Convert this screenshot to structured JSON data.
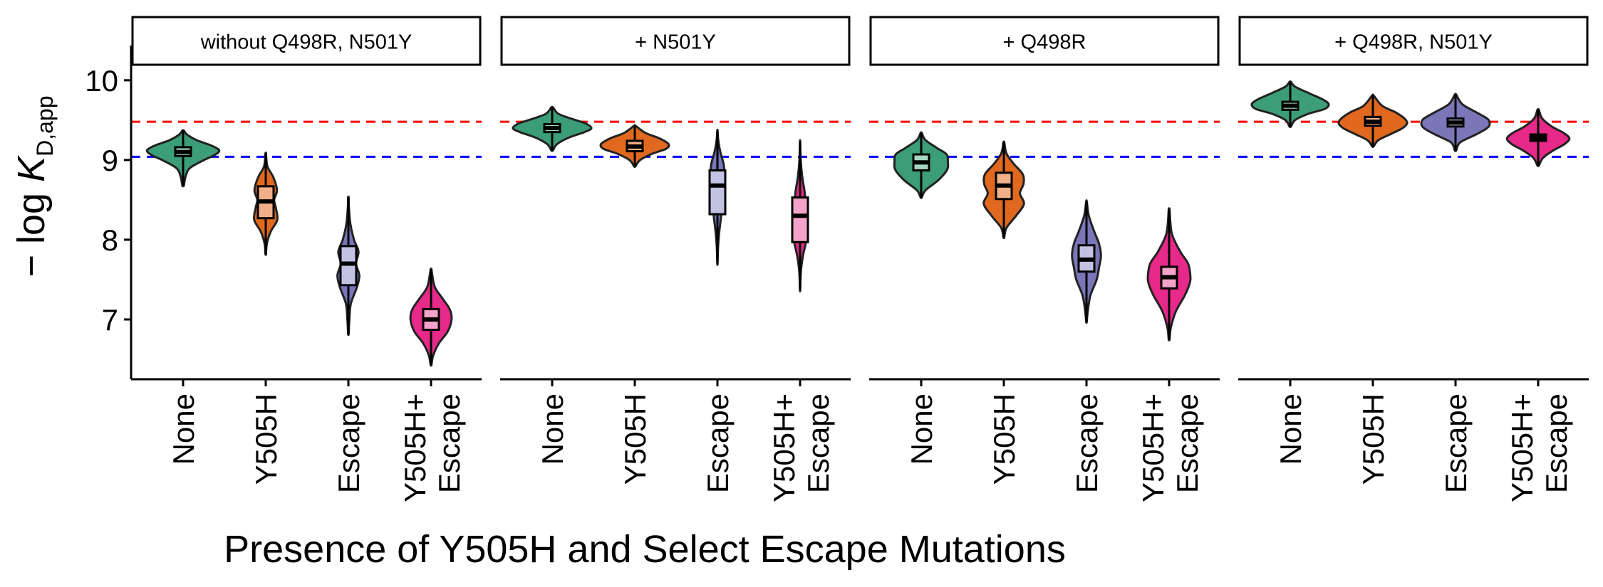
{
  "chart_data": {
    "type": "violin",
    "ylabel_main": "− log ",
    "ylabel_italic": "K",
    "ylabel_sub": "D,app",
    "xlabel": "Presence of Y505H and Select Escape Mutations",
    "ylim": [
      6.25,
      10.4
    ],
    "yticks": [
      7,
      8,
      9,
      10
    ],
    "reference_lines": [
      {
        "value": 9.48,
        "color": "#ff0000"
      },
      {
        "value": 9.04,
        "color": "#0000ff"
      }
    ],
    "categories": [
      {
        "line1": "None",
        "line2": ""
      },
      {
        "line1": "Y505H",
        "line2": ""
      },
      {
        "line1": "Escape",
        "line2": ""
      },
      {
        "line1": "Y505H+",
        "line2": "Escape"
      }
    ],
    "colors": {
      "fill": [
        "#3b9e78",
        "#e0691f",
        "#7a76b8",
        "#e7298a"
      ],
      "box": [
        "#a6d7c2",
        "#f2b08a",
        "#c4c2e2",
        "#f3a3c9"
      ]
    },
    "panels": [
      {
        "title": "without Q498R, N501Y",
        "violins": [
          {
            "center": 9.1,
            "min": 8.68,
            "max": 9.37,
            "q1": 9.05,
            "q3": 9.16,
            "median": 9.1,
            "w": 0.92,
            "shape": [
              [
                8.68,
                0.02
              ],
              [
                8.8,
                0.07
              ],
              [
                8.9,
                0.18
              ],
              [
                9.0,
                0.55
              ],
              [
                9.06,
                0.82
              ],
              [
                9.12,
                0.95
              ],
              [
                9.18,
                0.75
              ],
              [
                9.25,
                0.35
              ],
              [
                9.32,
                0.1
              ],
              [
                9.37,
                0.02
              ]
            ]
          },
          {
            "center": 8.48,
            "min": 7.82,
            "max": 9.08,
            "q1": 8.27,
            "q3": 8.67,
            "median": 8.48,
            "w": 0.34,
            "shape": [
              [
                7.82,
                0.02
              ],
              [
                7.95,
                0.08
              ],
              [
                8.1,
                0.35
              ],
              [
                8.25,
                0.82
              ],
              [
                8.4,
                0.72
              ],
              [
                8.5,
                0.6
              ],
              [
                8.62,
                0.8
              ],
              [
                8.78,
                0.55
              ],
              [
                8.92,
                0.12
              ],
              [
                9.08,
                0.02
              ]
            ]
          },
          {
            "center": 7.7,
            "min": 6.82,
            "max": 8.53,
            "q1": 7.43,
            "q3": 7.92,
            "median": 7.7,
            "w": 0.34,
            "shape": [
              [
                6.82,
                0.02
              ],
              [
                7.0,
                0.07
              ],
              [
                7.2,
                0.18
              ],
              [
                7.4,
                0.6
              ],
              [
                7.55,
                0.78
              ],
              [
                7.7,
                0.55
              ],
              [
                7.85,
                0.72
              ],
              [
                8.0,
                0.4
              ],
              [
                8.2,
                0.14
              ],
              [
                8.4,
                0.04
              ],
              [
                8.53,
                0.02
              ]
            ]
          },
          {
            "center": 7.0,
            "min": 6.43,
            "max": 7.63,
            "q1": 6.87,
            "q3": 7.13,
            "median": 7.0,
            "w": 0.54,
            "shape": [
              [
                6.43,
                0.02
              ],
              [
                6.55,
                0.1
              ],
              [
                6.7,
                0.35
              ],
              [
                6.85,
                0.75
              ],
              [
                7.0,
                0.92
              ],
              [
                7.12,
                0.85
              ],
              [
                7.25,
                0.55
              ],
              [
                7.4,
                0.18
              ],
              [
                7.55,
                0.06
              ],
              [
                7.63,
                0.02
              ]
            ]
          }
        ]
      },
      {
        "title": "+ N501Y",
        "violins": [
          {
            "center": 9.4,
            "min": 9.12,
            "max": 9.66,
            "q1": 9.35,
            "q3": 9.45,
            "median": 9.4,
            "w": 1.0,
            "shape": [
              [
                9.12,
                0.02
              ],
              [
                9.2,
                0.12
              ],
              [
                9.28,
                0.4
              ],
              [
                9.35,
                0.78
              ],
              [
                9.4,
                0.95
              ],
              [
                9.46,
                0.8
              ],
              [
                9.52,
                0.45
              ],
              [
                9.58,
                0.15
              ],
              [
                9.66,
                0.02
              ]
            ]
          },
          {
            "center": 9.17,
            "min": 8.92,
            "max": 9.43,
            "q1": 9.11,
            "q3": 9.24,
            "median": 9.17,
            "w": 0.86,
            "shape": [
              [
                8.92,
                0.02
              ],
              [
                9.0,
                0.15
              ],
              [
                9.08,
                0.5
              ],
              [
                9.14,
                0.88
              ],
              [
                9.2,
                0.95
              ],
              [
                9.27,
                0.7
              ],
              [
                9.34,
                0.3
              ],
              [
                9.43,
                0.02
              ]
            ]
          },
          {
            "center": 8.68,
            "min": 7.7,
            "max": 9.37,
            "q1": 8.32,
            "q3": 8.87,
            "median": 8.68,
            "w": 0.2,
            "shape": [
              [
                7.7,
                0.02
              ],
              [
                7.9,
                0.08
              ],
              [
                8.1,
                0.22
              ],
              [
                8.3,
                0.45
              ],
              [
                8.5,
                0.55
              ],
              [
                8.65,
                0.78
              ],
              [
                8.8,
                0.85
              ],
              [
                8.95,
                0.75
              ],
              [
                9.1,
                0.35
              ],
              [
                9.25,
                0.1
              ],
              [
                9.37,
                0.02
              ]
            ]
          },
          {
            "center": 8.3,
            "min": 7.37,
            "max": 9.23,
            "q1": 7.97,
            "q3": 8.53,
            "median": 8.3,
            "w": 0.2,
            "shape": [
              [
                7.37,
                0.02
              ],
              [
                7.6,
                0.1
              ],
              [
                7.8,
                0.35
              ],
              [
                8.0,
                0.75
              ],
              [
                8.15,
                0.55
              ],
              [
                8.3,
                0.45
              ],
              [
                8.45,
                0.65
              ],
              [
                8.6,
                0.55
              ],
              [
                8.8,
                0.25
              ],
              [
                9.0,
                0.08
              ],
              [
                9.23,
                0.02
              ]
            ]
          }
        ]
      },
      {
        "title": "+ Q498R",
        "violins": [
          {
            "center": 8.97,
            "min": 8.53,
            "max": 9.34,
            "q1": 8.87,
            "q3": 9.07,
            "median": 8.97,
            "w": 0.7,
            "shape": [
              [
                8.53,
                0.02
              ],
              [
                8.62,
                0.15
              ],
              [
                8.75,
                0.6
              ],
              [
                8.88,
                0.9
              ],
              [
                8.98,
                0.92
              ],
              [
                9.07,
                0.88
              ],
              [
                9.15,
                0.55
              ],
              [
                9.25,
                0.15
              ],
              [
                9.34,
                0.02
              ]
            ]
          },
          {
            "center": 8.68,
            "min": 8.03,
            "max": 9.22,
            "q1": 8.51,
            "q3": 8.84,
            "median": 8.68,
            "w": 0.54,
            "shape": [
              [
                8.03,
                0.02
              ],
              [
                8.15,
                0.12
              ],
              [
                8.3,
                0.55
              ],
              [
                8.45,
                0.9
              ],
              [
                8.58,
                0.72
              ],
              [
                8.7,
                0.88
              ],
              [
                8.82,
                0.85
              ],
              [
                8.95,
                0.45
              ],
              [
                9.08,
                0.12
              ],
              [
                9.22,
                0.02
              ]
            ]
          },
          {
            "center": 7.75,
            "min": 6.97,
            "max": 8.48,
            "q1": 7.6,
            "q3": 7.93,
            "median": 7.75,
            "w": 0.38,
            "shape": [
              [
                6.97,
                0.02
              ],
              [
                7.1,
                0.08
              ],
              [
                7.3,
                0.25
              ],
              [
                7.5,
                0.65
              ],
              [
                7.65,
                0.8
              ],
              [
                7.8,
                0.92
              ],
              [
                7.95,
                0.8
              ],
              [
                8.1,
                0.5
              ],
              [
                8.3,
                0.15
              ],
              [
                8.48,
                0.02
              ]
            ]
          },
          {
            "center": 7.53,
            "min": 6.75,
            "max": 8.38,
            "q1": 7.39,
            "q3": 7.66,
            "median": 7.53,
            "w": 0.54,
            "shape": [
              [
                6.75,
                0.02
              ],
              [
                6.9,
                0.08
              ],
              [
                7.1,
                0.3
              ],
              [
                7.3,
                0.7
              ],
              [
                7.45,
                0.92
              ],
              [
                7.55,
                0.95
              ],
              [
                7.7,
                0.85
              ],
              [
                7.85,
                0.5
              ],
              [
                8.05,
                0.15
              ],
              [
                8.2,
                0.06
              ],
              [
                8.38,
                0.02
              ]
            ]
          }
        ]
      },
      {
        "title": "+ Q498R, N501Y",
        "violins": [
          {
            "center": 9.68,
            "min": 9.42,
            "max": 9.98,
            "q1": 9.63,
            "q3": 9.73,
            "median": 9.68,
            "w": 0.98,
            "shape": [
              [
                9.42,
                0.02
              ],
              [
                9.5,
                0.12
              ],
              [
                9.58,
                0.45
              ],
              [
                9.64,
                0.85
              ],
              [
                9.7,
                0.95
              ],
              [
                9.76,
                0.8
              ],
              [
                9.84,
                0.45
              ],
              [
                9.92,
                0.12
              ],
              [
                9.98,
                0.02
              ]
            ]
          },
          {
            "center": 9.48,
            "min": 9.17,
            "max": 9.81,
            "q1": 9.43,
            "q3": 9.54,
            "median": 9.48,
            "w": 0.9,
            "shape": [
              [
                9.17,
                0.02
              ],
              [
                9.25,
                0.15
              ],
              [
                9.33,
                0.5
              ],
              [
                9.4,
                0.8
              ],
              [
                9.46,
                0.92
              ],
              [
                9.52,
                0.85
              ],
              [
                9.6,
                0.6
              ],
              [
                9.68,
                0.25
              ],
              [
                9.81,
                0.02
              ]
            ]
          },
          {
            "center": 9.47,
            "min": 9.12,
            "max": 9.82,
            "q1": 9.42,
            "q3": 9.52,
            "median": 9.47,
            "w": 0.9,
            "shape": [
              [
                9.12,
                0.02
              ],
              [
                9.22,
                0.12
              ],
              [
                9.32,
                0.55
              ],
              [
                9.4,
                0.85
              ],
              [
                9.46,
                0.92
              ],
              [
                9.52,
                0.85
              ],
              [
                9.6,
                0.55
              ],
              [
                9.7,
                0.18
              ],
              [
                9.82,
                0.02
              ]
            ]
          },
          {
            "center": 9.28,
            "min": 8.93,
            "max": 9.63,
            "q1": 9.24,
            "q3": 9.32,
            "median": 9.28,
            "w": 0.82,
            "shape": [
              [
                8.93,
                0.02
              ],
              [
                9.03,
                0.15
              ],
              [
                9.12,
                0.45
              ],
              [
                9.2,
                0.78
              ],
              [
                9.27,
                0.92
              ],
              [
                9.34,
                0.75
              ],
              [
                9.42,
                0.4
              ],
              [
                9.52,
                0.12
              ],
              [
                9.63,
                0.02
              ]
            ]
          }
        ]
      }
    ]
  }
}
